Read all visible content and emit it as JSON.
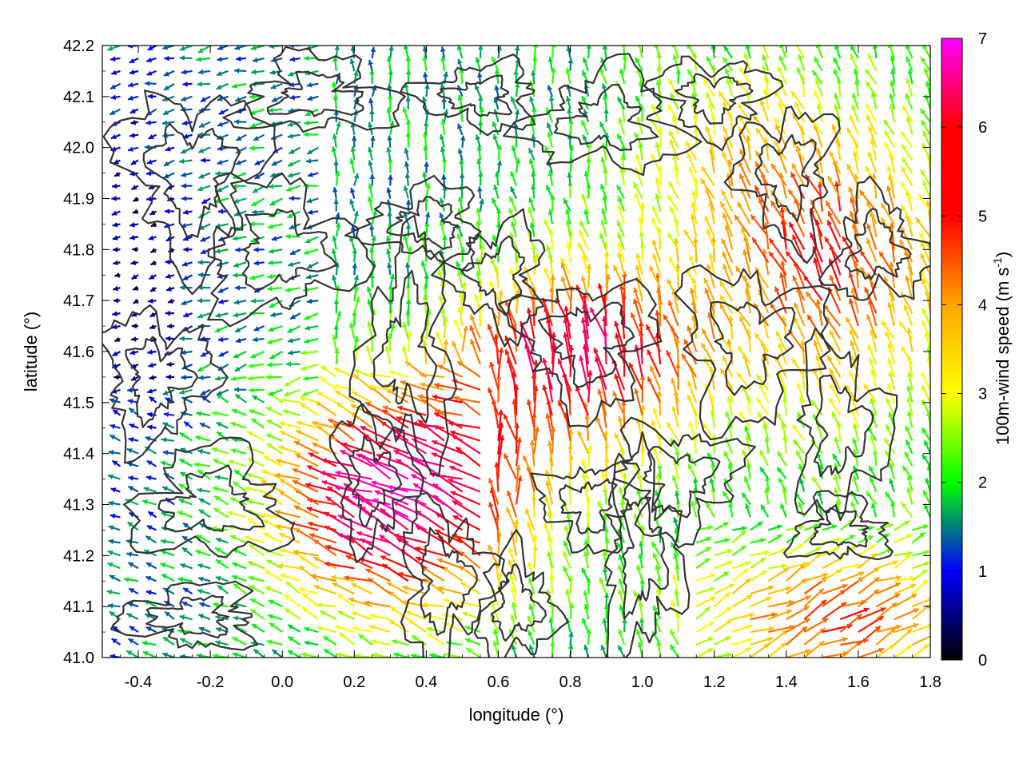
{
  "chart_data": {
    "type": "quiver",
    "xlabel": "longitude (°)",
    "ylabel": "latitude (°)",
    "xlim": [
      -0.5,
      1.8
    ],
    "ylim": [
      41.0,
      42.2
    ],
    "xticks": [
      "-0.4",
      "-0.2",
      "0.0",
      "0.2",
      "0.4",
      "0.6",
      "0.8",
      "1.0",
      "1.2",
      "1.4",
      "1.6",
      "1.8"
    ],
    "xtick_values": [
      -0.4,
      -0.2,
      0.0,
      0.2,
      0.4,
      0.6,
      0.8,
      1.0,
      1.2,
      1.4,
      1.6,
      1.8
    ],
    "yticks": [
      "41.0",
      "41.1",
      "41.2",
      "41.3",
      "41.4",
      "41.5",
      "41.6",
      "41.7",
      "41.8",
      "41.9",
      "42.0",
      "42.1",
      "42.2"
    ],
    "ytick_values": [
      41.0,
      41.1,
      41.2,
      41.3,
      41.4,
      41.5,
      41.6,
      41.7,
      41.8,
      41.9,
      42.0,
      42.1,
      42.2
    ],
    "grid": true,
    "colorbar": {
      "label_prefix": "100m-wind speed (m s",
      "label_superscript": "-1",
      "label_suffix": ")",
      "ticks": [
        "0",
        "1",
        "2",
        "3",
        "4",
        "5",
        "6",
        "7"
      ],
      "tick_values": [
        0,
        1,
        2,
        3,
        4,
        5,
        6,
        7
      ],
      "range": [
        0,
        7
      ],
      "palette": [
        "#000000",
        "#0000ff",
        "#00ff00",
        "#ffff00",
        "#ffa500",
        "#ff0000",
        "#ff00ff"
      ]
    },
    "wind_regimes": [
      {
        "region": "west / north-west",
        "speed_range": [
          0.5,
          2.0
        ],
        "direction": "from east (easterly)"
      },
      {
        "region": "central south (0.1–0.6°E, 41.2–41.5°N)",
        "speed_range": [
          5.0,
          6.8
        ],
        "direction": "from south-east"
      },
      {
        "region": "central (0.6–1.2°E, 41.4–41.8°N)",
        "speed_range": [
          4.5,
          6.5
        ],
        "direction": "from south"
      },
      {
        "region": "south-east (1.2–1.8°E, 41.0–41.2°N)",
        "speed_range": [
          4.0,
          5.5
        ],
        "direction": "from south-west"
      },
      {
        "region": "east (1.3–1.8°E, 41.5–42.0°N)",
        "speed_range": [
          3.5,
          5.5
        ],
        "direction": "from south-east"
      }
    ],
    "contour_color": "#333333"
  }
}
